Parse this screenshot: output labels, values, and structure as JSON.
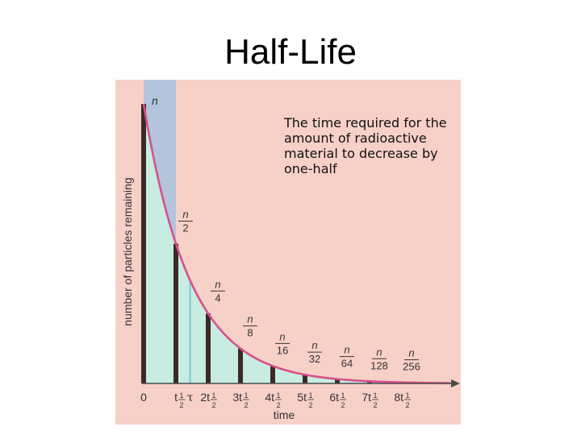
{
  "slide": {
    "title": "Half-Life",
    "definition": "The time required for the amount of radioactive material to decrease by one-half"
  },
  "chart_data": {
    "type": "bar",
    "ylabel": "number of particles remaining",
    "xlabel": "time",
    "top_label": "n",
    "x_tick_labels": [
      {
        "pre": "0",
        "frac": false
      },
      {
        "pre": "",
        "frac": true
      },
      {
        "pre": "2",
        "frac": true
      },
      {
        "pre": "3",
        "frac": true
      },
      {
        "pre": "4",
        "frac": true
      },
      {
        "pre": "5",
        "frac": true
      },
      {
        "pre": "6",
        "frac": true
      },
      {
        "pre": "7",
        "frac": true
      },
      {
        "pre": "8",
        "frac": true
      }
    ],
    "tau_label": "τ",
    "tau_x": 1.44,
    "t_symbol": "t",
    "t_sub_num": "1",
    "t_sub_den": "2",
    "bar_label_numerator": "n",
    "bar_label_denominators": [
      "2",
      "4",
      "8",
      "16",
      "32",
      "64",
      "128",
      "256"
    ],
    "x": [
      0,
      1,
      2,
      3,
      4,
      5,
      6,
      7,
      8
    ],
    "values": [
      1,
      0.5,
      0.25,
      0.125,
      0.0625,
      0.03125,
      0.015625,
      0.0078125,
      0.00390625
    ],
    "xlim": [
      0,
      9.5
    ],
    "ylim": [
      0,
      1
    ],
    "curve": "exponential decay",
    "colors": {
      "background": "#f7d0c8",
      "under_curve": "#c8ece2",
      "first_interval": "#b4c4dd",
      "bar": "#3a2b24",
      "curve": "#d8508a",
      "tau_line": "#7cc8d4",
      "axis": "#4a4a4a"
    }
  }
}
